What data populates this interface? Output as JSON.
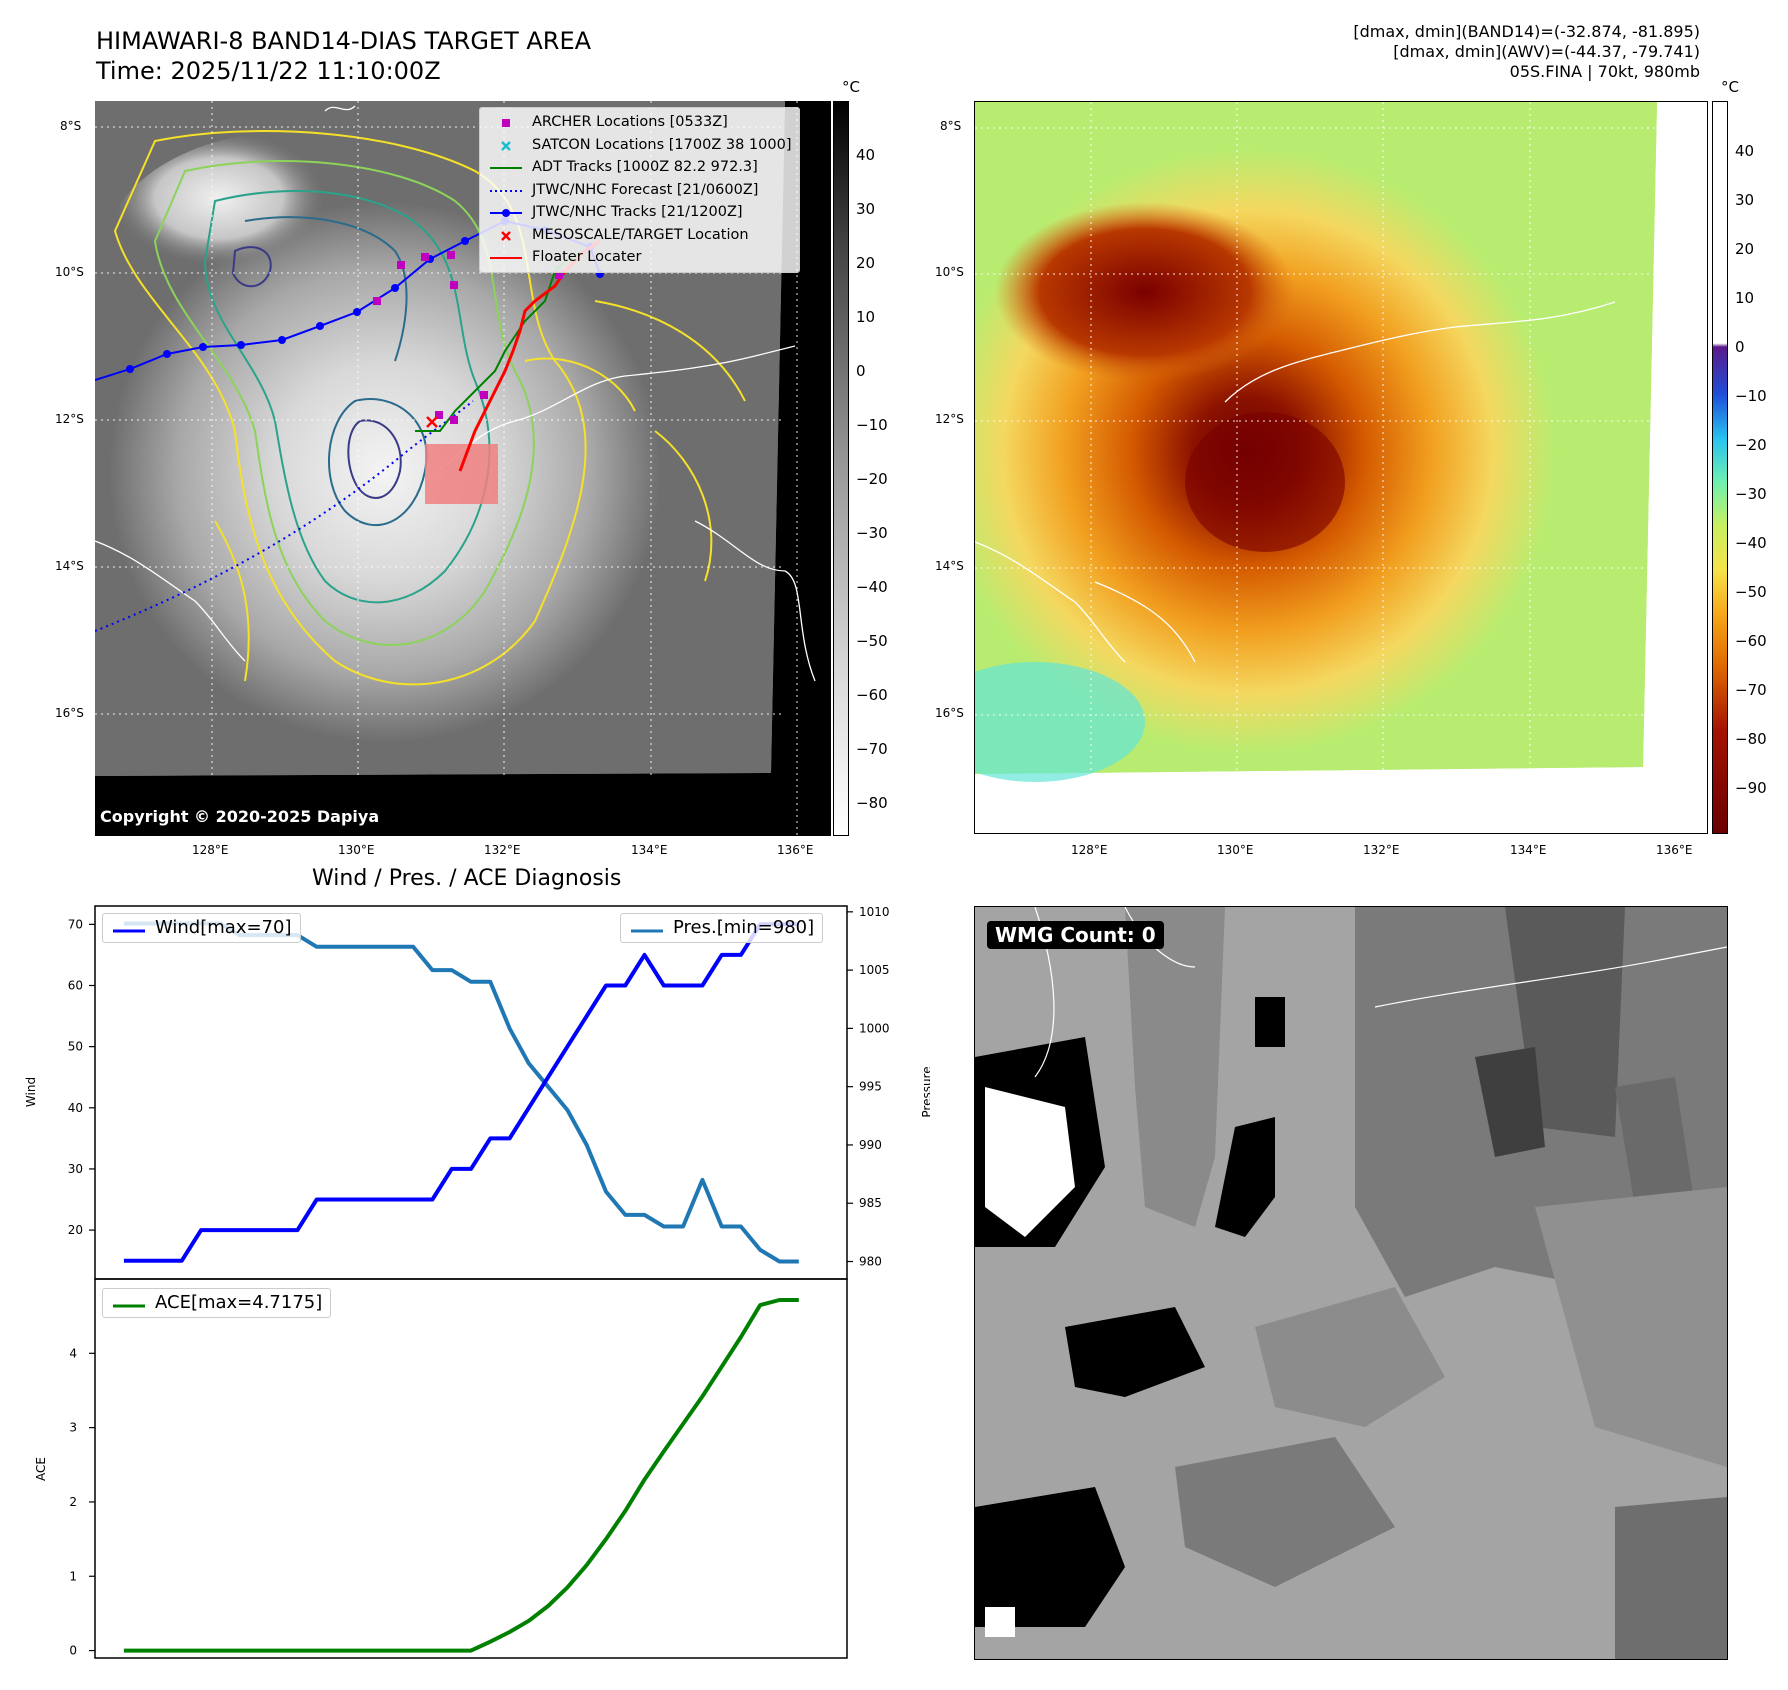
{
  "header": {
    "title_line1": "HIMAWARI-8 BAND14-DIAS TARGET AREA",
    "title_line2": "Time: 2025/11/22 11:10:00Z",
    "info_line1": "[dmax, dmin](BAND14)=(-32.874, -81.895)",
    "info_line2": "[dmax, dmin](AWV)=(-44.37, -79.741)",
    "info_line3": "05S.FINA | 70kt, 980mb"
  },
  "map": {
    "lat_labels": [
      "8°S",
      "10°S",
      "12°S",
      "14°S",
      "16°S"
    ],
    "lon_labels": [
      "128°E",
      "130°E",
      "132°E",
      "134°E",
      "136°E"
    ],
    "copyright": "Copyright © 2020-2025 Dapiya",
    "legend": [
      {
        "label": "ARCHER Locations [0533Z]",
        "symbol": "square",
        "color": "#bf00bf"
      },
      {
        "label": "SATCON Locations [1700Z 38 1000]",
        "symbol": "x",
        "color": "#17becf"
      },
      {
        "label": "ADT Tracks [1000Z 82.2 972.3]",
        "symbol": "line",
        "color": "#008000"
      },
      {
        "label": "JTWC/NHC Forecast [21/0600Z]",
        "symbol": "dotted",
        "color": "#0000ff"
      },
      {
        "label": "JTWC/NHC Tracks [21/1200Z]",
        "symbol": "line-dot",
        "color": "#0000ff"
      },
      {
        "label": "MESOSCALE/TARGET Location",
        "symbol": "x",
        "color": "#ff0000"
      },
      {
        "label": "Floater Locater",
        "symbol": "line",
        "color": "#ff0000"
      }
    ]
  },
  "colorbar_gray": {
    "unit": "°C",
    "ticks": [
      "40",
      "30",
      "20",
      "10",
      "0",
      "−10",
      "−20",
      "−30",
      "−40",
      "−50",
      "−60",
      "−70",
      "−80"
    ]
  },
  "colorbar_color": {
    "unit": "°C",
    "ticks": [
      "40",
      "30",
      "20",
      "10",
      "0",
      "−10",
      "−20",
      "−30",
      "−40",
      "−50",
      "−60",
      "−70",
      "−80",
      "−90"
    ]
  },
  "wmg": {
    "badge": "WMG Count: 0"
  },
  "chart_data": [
    {
      "type": "line",
      "title": "Wind / Pres. / ACE Diagnosis",
      "ylabel": "Wind",
      "ylabel_right": "Pressure",
      "ylim": [
        12,
        73
      ],
      "ylim_right": [
        978.5,
        1010.5
      ],
      "yticks": [
        20,
        30,
        40,
        50,
        60,
        70
      ],
      "yticks_right": [
        980,
        985,
        990,
        995,
        1000,
        1005,
        1010
      ],
      "x": [
        0,
        1,
        2,
        3,
        4,
        5,
        6,
        7,
        8,
        9,
        10,
        11,
        12,
        13,
        14,
        15,
        16,
        17,
        18,
        19,
        20,
        21,
        22,
        23,
        24,
        25,
        26,
        27,
        28,
        29,
        30,
        31,
        32,
        33,
        34,
        35
      ],
      "series": [
        {
          "name": "Wind[max=70]",
          "color": "#0000ff",
          "legend_position": "upper-left",
          "values": [
            15,
            15,
            15,
            15,
            20,
            20,
            20,
            20,
            20,
            20,
            25,
            25,
            25,
            25,
            25,
            25,
            25,
            30,
            30,
            35,
            35,
            40,
            45,
            50,
            55,
            60,
            60,
            65,
            60,
            60,
            60,
            65,
            65,
            70,
            70,
            70
          ]
        },
        {
          "name": "Pres.[min=980]",
          "color": "#1f77b4",
          "legend_position": "upper-right",
          "axis": "right",
          "values": [
            1009,
            1009,
            1009,
            1009,
            1009,
            1009,
            1008,
            1008,
            1008,
            1008,
            1007,
            1007,
            1007,
            1007,
            1007,
            1007,
            1005,
            1005,
            1004,
            1004,
            1000,
            997,
            995,
            993,
            990,
            986,
            984,
            984,
            983,
            983,
            987,
            983,
            983,
            981,
            980,
            980
          ]
        }
      ]
    },
    {
      "type": "line",
      "ylabel": "ACE",
      "ylim": [
        -0.1,
        5.0
      ],
      "yticks": [
        0,
        1,
        2,
        3,
        4
      ],
      "x": [
        0,
        1,
        2,
        3,
        4,
        5,
        6,
        7,
        8,
        9,
        10,
        11,
        12,
        13,
        14,
        15,
        16,
        17,
        18,
        19,
        20,
        21,
        22,
        23,
        24,
        25,
        26,
        27,
        28,
        29,
        30,
        31,
        32,
        33,
        34,
        35
      ],
      "series": [
        {
          "name": "ACE[max=4.7175]",
          "color": "#008000",
          "legend_position": "upper-left",
          "values": [
            0,
            0,
            0,
            0,
            0,
            0,
            0,
            0,
            0,
            0,
            0,
            0,
            0,
            0,
            0,
            0,
            0,
            0,
            0,
            0.12,
            0.25,
            0.4,
            0.6,
            0.85,
            1.15,
            1.5,
            1.88,
            2.3,
            2.68,
            3.05,
            3.42,
            3.82,
            4.22,
            4.65,
            4.7175,
            4.7175
          ]
        }
      ]
    }
  ]
}
